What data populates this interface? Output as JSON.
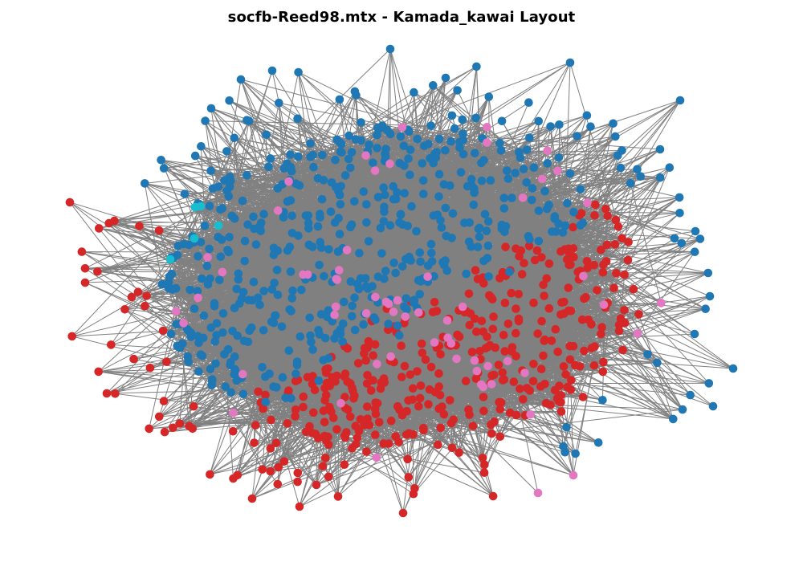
{
  "title": "socfb-Reed98.mtx - Kamada_kawai Layout",
  "colors": {
    "edge": "#808080",
    "background": "#ffffff",
    "communities": {
      "blue": "#1f77b4",
      "red": "#d62728",
      "pink": "#e377c2",
      "cyan": "#17becf"
    }
  },
  "chart_data": {
    "type": "network",
    "layout": "kamada_kawai",
    "title": "socfb-Reed98.mtx - Kamada_kawai Layout",
    "node_groups": [
      {
        "color": "blue",
        "hex": "#1f77b4",
        "approx_count": 540
      },
      {
        "color": "red",
        "hex": "#d62728",
        "approx_count": 420
      },
      {
        "color": "pink",
        "hex": "#e377c2",
        "approx_count": 60
      },
      {
        "color": "cyan",
        "hex": "#17becf",
        "approx_count": 5
      }
    ],
    "edge_color": "#808080",
    "axes": "off"
  }
}
